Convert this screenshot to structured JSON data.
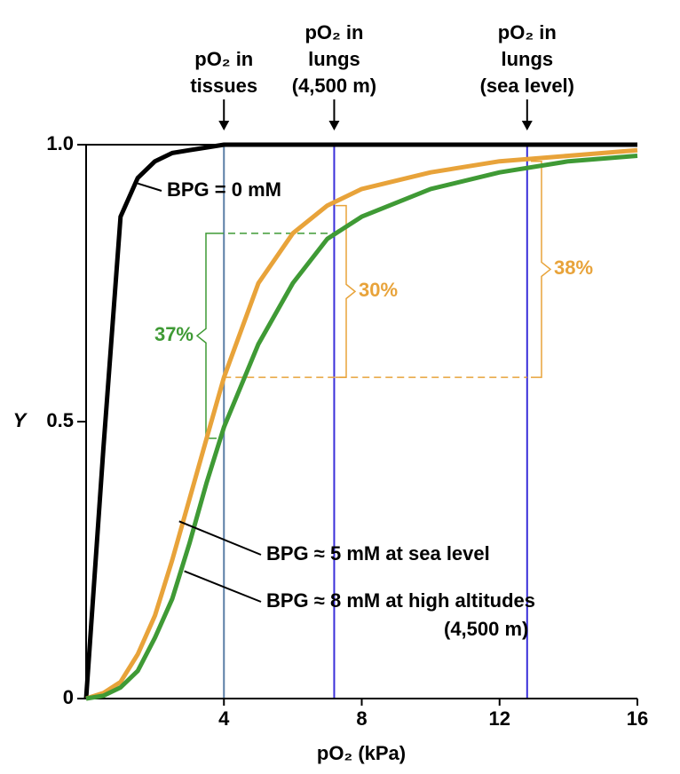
{
  "chart_data": {
    "type": "line",
    "x_label": "pO₂ (kPa)",
    "y_label": "Y",
    "xlim": [
      0,
      16
    ],
    "ylim": [
      0,
      1
    ],
    "xticks": [
      4,
      8,
      12,
      16
    ],
    "yticks": [
      0,
      0.5,
      {
        "value": 1,
        "label": "1.0"
      }
    ],
    "x": [
      0,
      0.5,
      1,
      1.5,
      2,
      2.5,
      3,
      3.5,
      4,
      5,
      6,
      7,
      8,
      10,
      12,
      14,
      16
    ],
    "series": [
      {
        "name": "BPG = 0 mM",
        "color": "#000000",
        "values": [
          0,
          0.45,
          0.87,
          0.94,
          0.97,
          0.985,
          0.99,
          0.995,
          1,
          1,
          1,
          1,
          1,
          1,
          1,
          1,
          1
        ]
      },
      {
        "name": "BPG ≈ 5 mM at sea level",
        "color": "#e8a33a",
        "values": [
          0,
          0.01,
          0.03,
          0.08,
          0.15,
          0.25,
          0.36,
          0.47,
          0.58,
          0.75,
          0.84,
          0.89,
          0.92,
          0.95,
          0.97,
          0.98,
          0.99
        ]
      },
      {
        "name": "BPG ≈ 8 mM at high altitudes",
        "name_note": "(4,500 m)",
        "color": "#3f9a35",
        "values": [
          0,
          0.005,
          0.02,
          0.05,
          0.11,
          0.18,
          0.28,
          0.39,
          0.49,
          0.64,
          0.75,
          0.83,
          0.87,
          0.92,
          0.95,
          0.97,
          0.98
        ]
      }
    ],
    "reference_lines": [
      {
        "x": 4,
        "color": "#5b7fa6",
        "label_lines": [
          "pO₂ in",
          "tissues"
        ]
      },
      {
        "x": 7.2,
        "color": "#3a2fd9",
        "label_lines": [
          "pO₂ in",
          "lungs",
          "(4,500 m)"
        ]
      },
      {
        "x": 12.8,
        "color": "#3a2fd9",
        "label_lines": [
          "pO₂ in",
          "lungs",
          "(sea level)"
        ]
      }
    ],
    "brackets": [
      {
        "text": "37%",
        "color": "#3f9a35",
        "y": [
          0.47,
          0.84
        ]
      },
      {
        "text": "30%",
        "color": "#e8a33a",
        "y": [
          0.58,
          0.89
        ]
      },
      {
        "text": "38%",
        "color": "#e8a33a",
        "y": [
          0.58,
          0.97
        ]
      }
    ]
  }
}
